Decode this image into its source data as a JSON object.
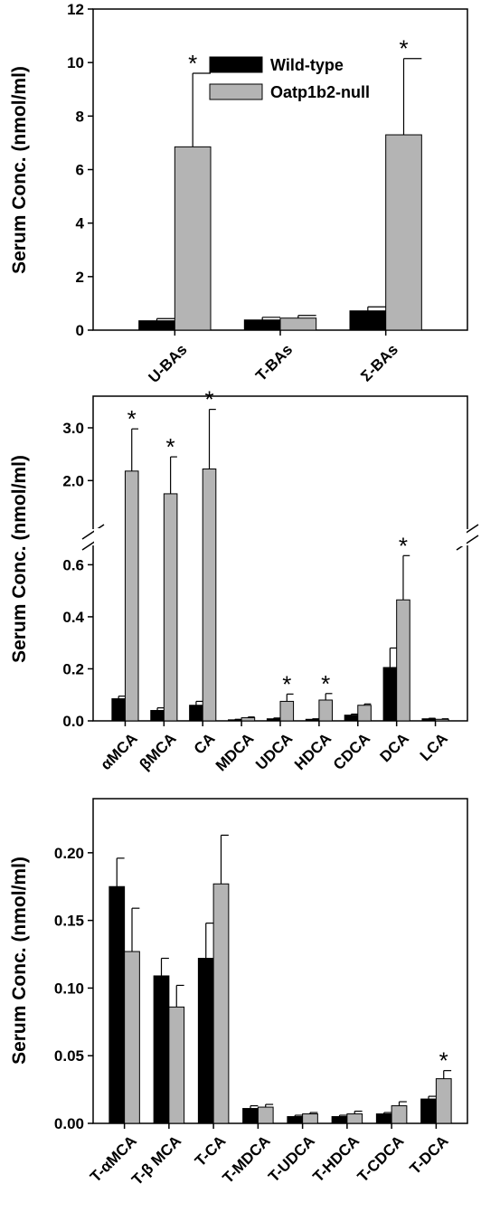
{
  "colors": {
    "wild_type": "#000000",
    "null": "#b4b4b4",
    "axis": "#000000"
  },
  "legend": {
    "placement": "top-center",
    "entries": [
      "Wild-type",
      "Oatp1b2-null"
    ]
  },
  "chart_data": [
    {
      "type": "bar",
      "ylabel": "Serum Conc. (nmol/ml)",
      "ylim": [
        0,
        12
      ],
      "yticks": [
        0,
        2,
        4,
        6,
        8,
        10,
        12
      ],
      "ytick_labels": [
        "0",
        "2",
        "4",
        "6",
        "8",
        "10",
        "12"
      ],
      "categories": [
        "U-BAs",
        "T-BAs",
        "Σ-BAs"
      ],
      "series": [
        {
          "name": "Wild-type",
          "values": [
            0.35,
            0.38,
            0.72
          ],
          "errors": [
            0.08,
            0.1,
            0.15
          ]
        },
        {
          "name": "Oatp1b2-null",
          "values": [
            6.85,
            0.45,
            7.3
          ],
          "errors": [
            2.75,
            0.1,
            2.85
          ]
        }
      ],
      "significance": [
        [
          false,
          false,
          false
        ],
        [
          true,
          false,
          true
        ]
      ],
      "legend": true
    },
    {
      "type": "bar",
      "ylabel": "Serum Conc. (nmol/ml)",
      "ylim": [
        0,
        3.6
      ],
      "axis_break": [
        0.65,
        1.2
      ],
      "yticks": [
        0,
        0.2,
        0.4,
        0.6,
        2.0,
        3.0
      ],
      "ytick_labels": [
        "0.0",
        "0.2",
        "0.4",
        "0.6",
        "2.0",
        "3.0"
      ],
      "categories": [
        "αMCA",
        "βMCA",
        "CA",
        "MDCA",
        "UDCA",
        "HDCA",
        "CDCA",
        "DCA",
        "LCA"
      ],
      "series": [
        {
          "name": "Wild-type",
          "values": [
            0.085,
            0.04,
            0.06,
            0.004,
            0.008,
            0.006,
            0.022,
            0.205,
            0.008
          ],
          "errors": [
            0.01,
            0.01,
            0.015,
            0.002,
            0.003,
            0.002,
            0.004,
            0.075,
            0.002
          ]
        },
        {
          "name": "Oatp1b2-null",
          "values": [
            2.18,
            1.75,
            2.22,
            0.012,
            0.075,
            0.08,
            0.06,
            0.465,
            0.006
          ],
          "errors": [
            0.8,
            0.7,
            1.13,
            0.003,
            0.028,
            0.025,
            0.005,
            0.17,
            0.002
          ]
        }
      ],
      "significance": [
        [
          false,
          false,
          false,
          false,
          false,
          false,
          false,
          false,
          false
        ],
        [
          true,
          true,
          true,
          false,
          true,
          true,
          false,
          true,
          false
        ]
      ],
      "legend": false
    },
    {
      "type": "bar",
      "ylabel": "Serum Conc. (nmol/ml)",
      "ylim": [
        0,
        0.24
      ],
      "yticks": [
        0,
        0.05,
        0.1,
        0.15,
        0.2
      ],
      "ytick_labels": [
        "0.00",
        "0.05",
        "0.10",
        "0.15",
        "0.20"
      ],
      "categories": [
        "T-αMCA",
        "T-β MCA",
        "T-CA",
        "T-MDCA",
        "T-UDCA",
        "T-HDCA",
        "T-CDCA",
        "T-DCA"
      ],
      "series": [
        {
          "name": "Wild-type",
          "values": [
            0.175,
            0.109,
            0.122,
            0.011,
            0.005,
            0.005,
            0.007,
            0.018
          ],
          "errors": [
            0.021,
            0.013,
            0.026,
            0.002,
            0.001,
            0.001,
            0.001,
            0.002
          ]
        },
        {
          "name": "Oatp1b2-null",
          "values": [
            0.127,
            0.086,
            0.177,
            0.012,
            0.007,
            0.007,
            0.013,
            0.033
          ],
          "errors": [
            0.032,
            0.016,
            0.036,
            0.002,
            0.001,
            0.002,
            0.003,
            0.006
          ]
        }
      ],
      "significance": [
        [
          false,
          false,
          false,
          false,
          false,
          false,
          false,
          false
        ],
        [
          false,
          false,
          false,
          false,
          false,
          false,
          false,
          true
        ]
      ],
      "legend": false
    }
  ]
}
